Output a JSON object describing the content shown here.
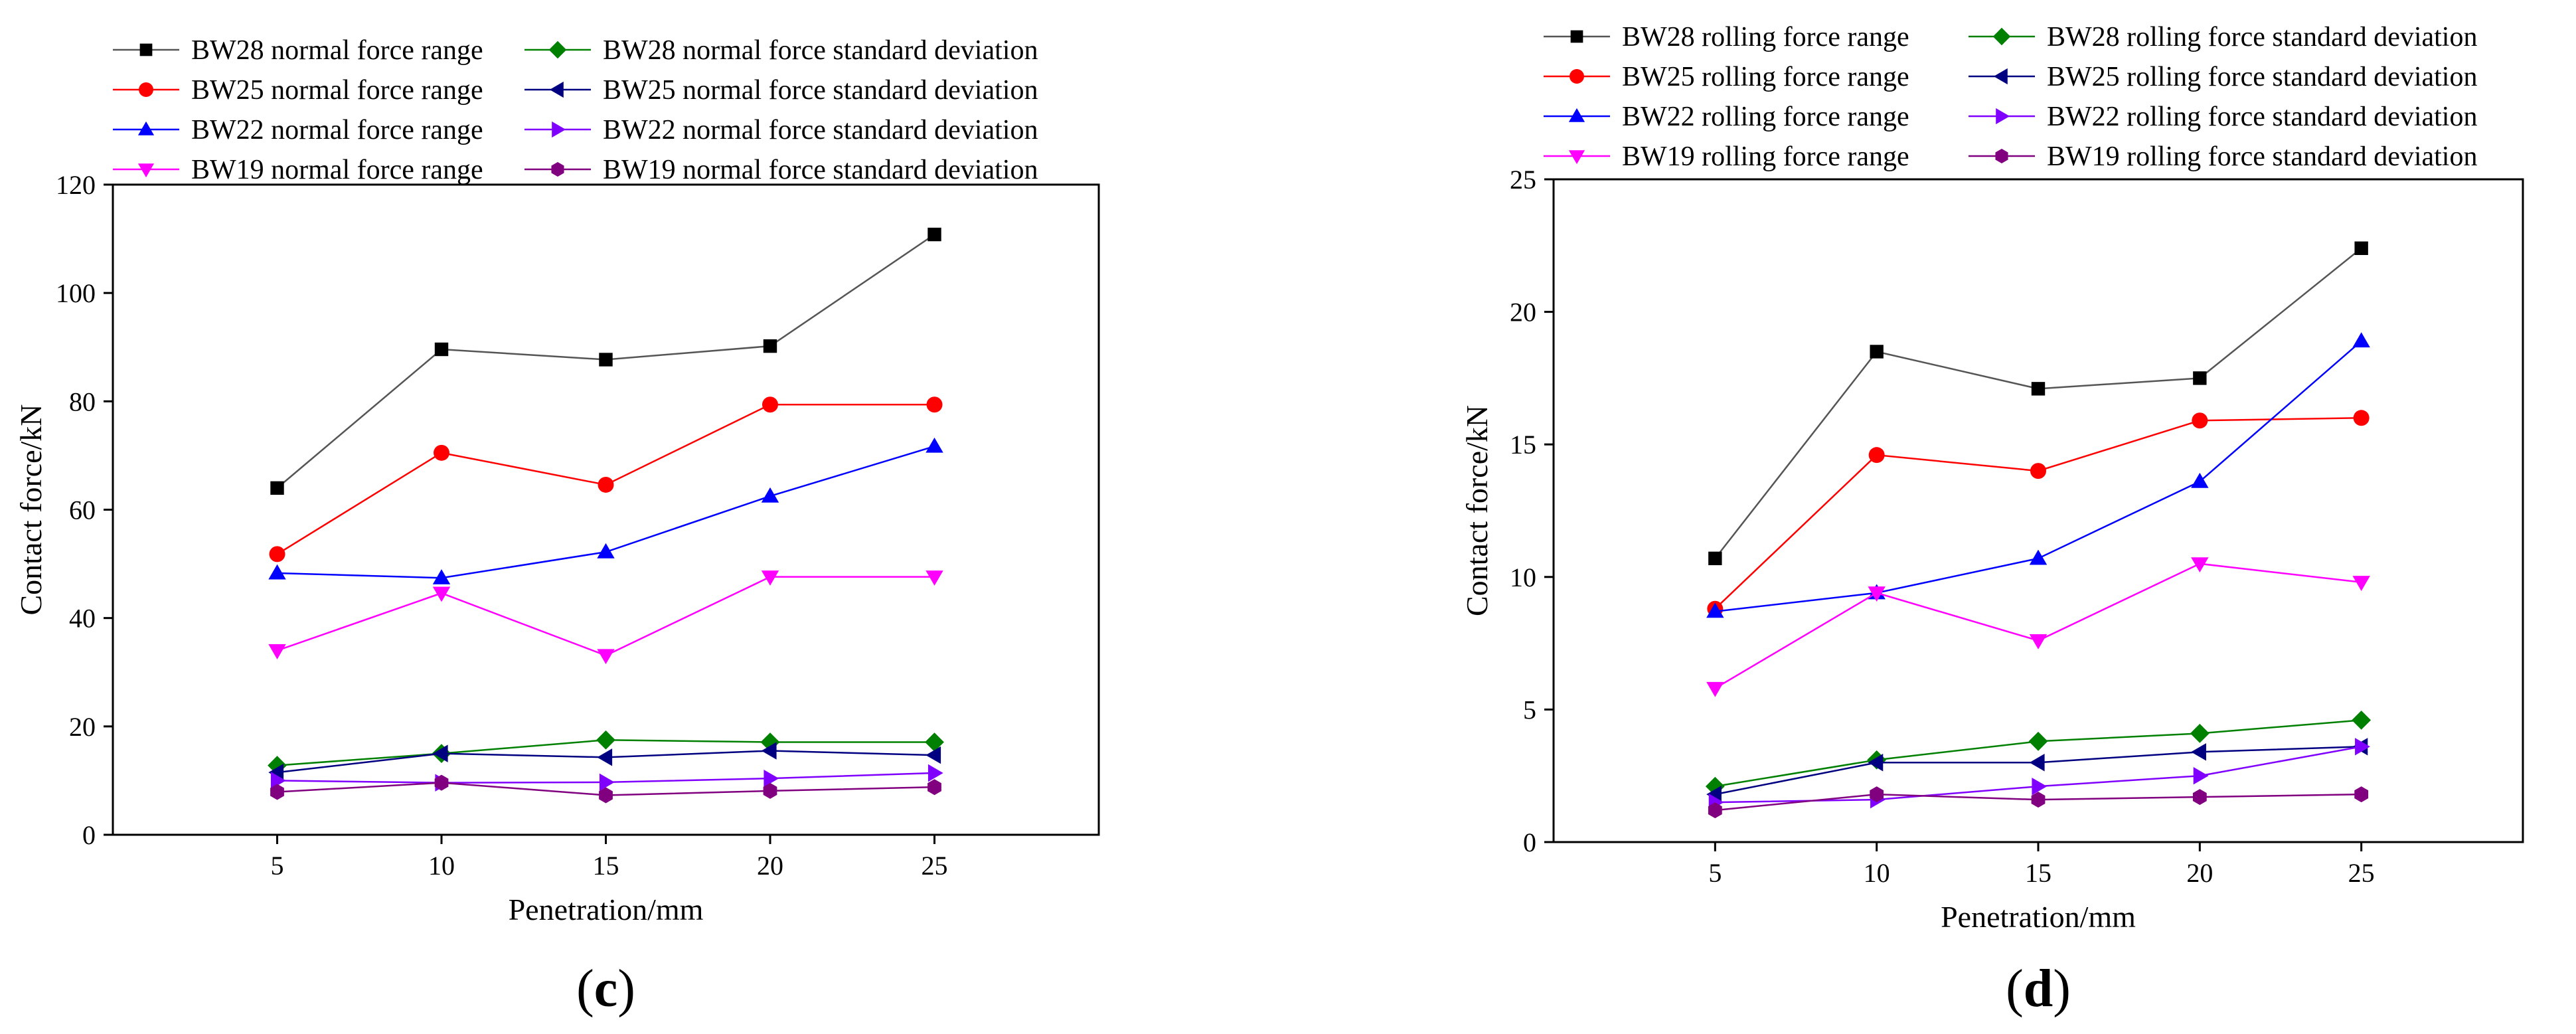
{
  "chart_data": [
    {
      "type": "line",
      "caption_parts": [
        "(",
        "c",
        ")"
      ],
      "xlabel": "Penetration/mm",
      "ylabel": "Contact force/kN",
      "xlim": [
        0,
        30
      ],
      "ylim": [
        0,
        120
      ],
      "x_ticks": [
        5,
        10,
        15,
        20,
        25
      ],
      "y_ticks": [
        0,
        20,
        40,
        60,
        80,
        100,
        120
      ],
      "x": [
        5,
        10,
        15,
        20,
        25
      ],
      "series": [
        {
          "name": "BW28 normal force range",
          "marker": "square",
          "color": "#000000",
          "line_color": "#555555",
          "values": [
            64,
            89.6,
            87.7,
            90.2,
            110.8
          ]
        },
        {
          "name": "BW25 normal force range",
          "marker": "circle",
          "color": "#ff0000",
          "line_color": "#ff0000",
          "values": [
            51.8,
            70.5,
            64.6,
            79.4,
            79.4
          ]
        },
        {
          "name": "BW22 normal force range",
          "marker": "triangle-up",
          "color": "#0000ff",
          "line_color": "#0000ff",
          "values": [
            48.3,
            47.4,
            52.2,
            62.5,
            71.7
          ]
        },
        {
          "name": "BW19 normal force range",
          "marker": "triangle-down",
          "color": "#ff00ff",
          "line_color": "#ff00ff",
          "values": [
            34,
            44.6,
            33.1,
            47.6,
            47.6
          ]
        },
        {
          "name": "BW28 normal force standard deviation",
          "marker": "diamond",
          "color": "#008000",
          "line_color": "#008000",
          "values": [
            12.8,
            15,
            17.5,
            17.1,
            17.1
          ]
        },
        {
          "name": "BW25 normal force standard deviation",
          "marker": "triangle-left",
          "color": "#000080",
          "line_color": "#000080",
          "values": [
            11.5,
            15,
            14.3,
            15.5,
            14.7
          ]
        },
        {
          "name": "BW22 normal force standard deviation",
          "marker": "triangle-right",
          "color": "#8000ff",
          "line_color": "#8000ff",
          "values": [
            10,
            9.6,
            9.7,
            10.4,
            11.4
          ]
        },
        {
          "name": "BW19 normal force standard deviation",
          "marker": "hexagon",
          "color": "#800080",
          "line_color": "#800080",
          "values": [
            7.9,
            9.6,
            7.3,
            8.1,
            8.8
          ]
        }
      ],
      "legend": "top, two columns, above plot"
    },
    {
      "type": "line",
      "caption_parts": [
        "(",
        "d",
        ")"
      ],
      "xlabel": "Penetration/mm",
      "ylabel": "Contact force/kN",
      "xlim": [
        0,
        30
      ],
      "ylim": [
        0,
        25
      ],
      "x_ticks": [
        5,
        10,
        15,
        20,
        25
      ],
      "y_ticks": [
        0,
        5,
        10,
        15,
        20,
        25
      ],
      "x": [
        5,
        10,
        15,
        20,
        25
      ],
      "series": [
        {
          "name": "BW28 rolling force range",
          "marker": "square",
          "color": "#000000",
          "line_color": "#555555",
          "values": [
            10.7,
            18.5,
            17.1,
            17.5,
            22.4
          ]
        },
        {
          "name": "BW25 rolling force range",
          "marker": "circle",
          "color": "#ff0000",
          "line_color": "#ff0000",
          "values": [
            8.8,
            14.6,
            14,
            15.9,
            16
          ]
        },
        {
          "name": "BW22 rolling force range",
          "marker": "triangle-up",
          "color": "#0000ff",
          "line_color": "#0000ff",
          "values": [
            8.7,
            9.4,
            10.7,
            13.6,
            18.9
          ]
        },
        {
          "name": "BW19 rolling force range",
          "marker": "triangle-down",
          "color": "#ff00ff",
          "line_color": "#ff00ff",
          "values": [
            5.8,
            9.4,
            7.6,
            10.5,
            9.8
          ]
        },
        {
          "name": "BW28 rolling force standard deviation",
          "marker": "diamond",
          "color": "#008000",
          "line_color": "#008000",
          "values": [
            2.1,
            3.1,
            3.8,
            4.1,
            4.6
          ]
        },
        {
          "name": "BW25 rolling force standard deviation",
          "marker": "triangle-left",
          "color": "#000080",
          "line_color": "#000080",
          "values": [
            1.8,
            3,
            3,
            3.4,
            3.6
          ]
        },
        {
          "name": "BW22 rolling force standard deviation",
          "marker": "triangle-right",
          "color": "#8000ff",
          "line_color": "#8000ff",
          "values": [
            1.5,
            1.6,
            2.1,
            2.5,
            3.6
          ]
        },
        {
          "name": "BW19 rolling force standard deviation",
          "marker": "hexagon",
          "color": "#800080",
          "line_color": "#800080",
          "values": [
            1.2,
            1.8,
            1.6,
            1.7,
            1.8
          ]
        }
      ],
      "legend": "top, two columns, above plot"
    }
  ]
}
